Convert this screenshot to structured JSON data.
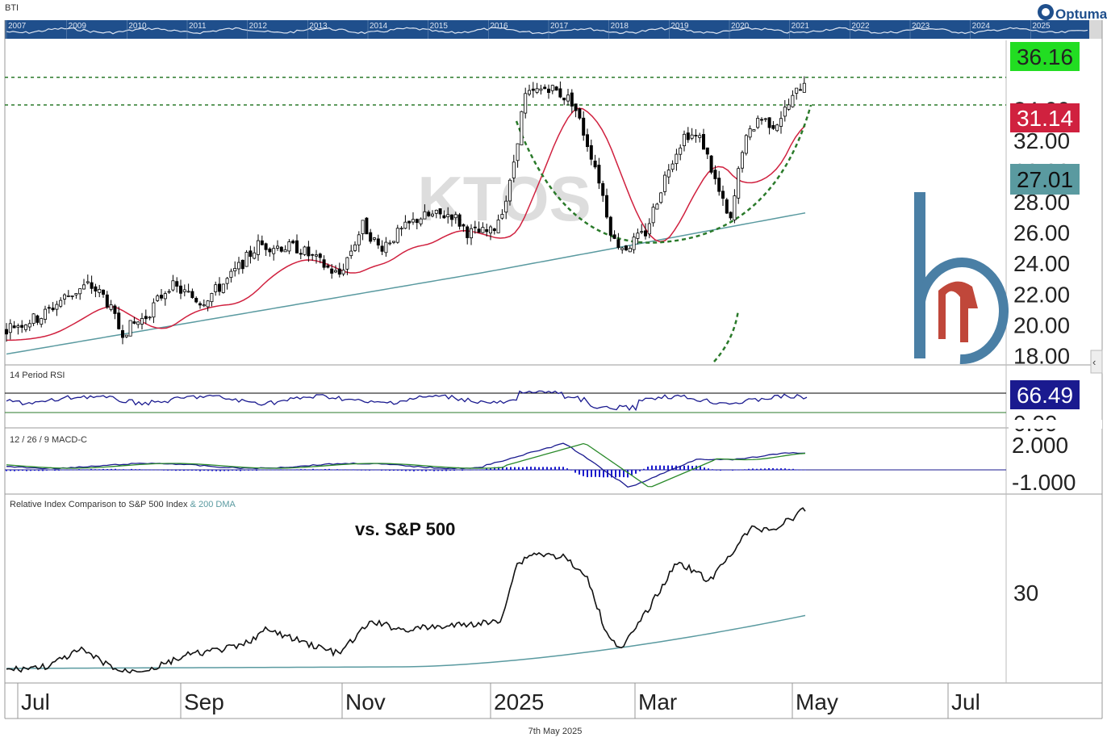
{
  "app": {
    "ticker_label": "BTI",
    "brand": "Optuma",
    "footer_date": "7th May 2025",
    "watermark_symbol": "KTOS",
    "colors": {
      "up": "#ffffff",
      "down": "#000000",
      "ma_fast": "#d0213f",
      "ma_slow": "#5a9aa0",
      "resistance": "#2a7a2a",
      "rsi": "#1a1a8f",
      "macd": "#1a1a8f",
      "signal": "#2a8a2a",
      "hist": "#1a1acc",
      "relative": "#111111",
      "brand_blue": "#4a7fa5",
      "brand_red": "#c0473a"
    }
  },
  "overview_strip": {
    "years": [
      "2007",
      "2009",
      "2010",
      "2011",
      "2012",
      "2013",
      "2014",
      "2015",
      "2016",
      "2017",
      "2018",
      "2019",
      "2020",
      "2021",
      "2022",
      "2023",
      "2024",
      "2025"
    ]
  },
  "chart_data": [
    {
      "type": "candlestick",
      "title": "",
      "ylabel": "",
      "ylim": [
        17.5,
        38.5
      ],
      "yticks": [
        "18.00",
        "20.00",
        "22.00",
        "24.00",
        "26.00",
        "28.00",
        "30.00",
        "32.00",
        "34.00"
      ],
      "last_price": "36.16",
      "ma_fast_value": "31.14",
      "ma_slow_value": "27.01",
      "resistance_levels": [
        36.1,
        34.3
      ],
      "candles": [],
      "grid": false
    },
    {
      "type": "line",
      "title": "14 Period RSI",
      "last_value": "66.49",
      "ylim": [
        0,
        100
      ],
      "ytick_partial": "0.00",
      "levels": [
        70,
        30
      ],
      "grid": false
    },
    {
      "type": "line+bar",
      "title": "12 / 26 / 9 MACD-C",
      "yticks": [
        "2.000",
        "-1.000"
      ],
      "ylim": [
        -1.6,
        2.4
      ],
      "grid": false
    },
    {
      "type": "line",
      "title": "Relative Index Comparison to S&P 500 Index",
      "title_suffix": "& 200 DMA",
      "annotation": "vs. S&P 500",
      "yticks": [
        "30"
      ],
      "grid": false
    }
  ],
  "x_axis": {
    "labels": [
      "Jul",
      "Sep",
      "Nov",
      "2025",
      "Mar",
      "May",
      "Jul"
    ]
  }
}
